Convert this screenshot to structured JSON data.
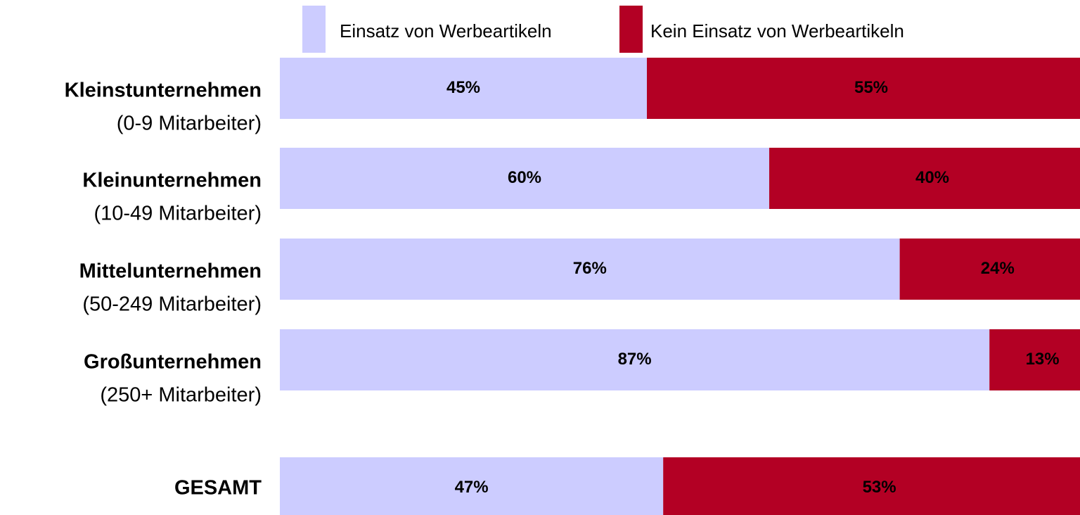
{
  "chart_data": {
    "type": "stacked_bar_horizontal",
    "categories": [
      "Kleinstunternehmen",
      "Kleinunternehmen",
      "Mittelunternehmen",
      "Großunternehmen",
      "GESAMT"
    ],
    "category_sublabels": [
      "(0-9 Mitarbeiter)",
      "(10-49 Mitarbeiter)",
      "(50-249 Mitarbeiter)",
      "(250+ Mitarbeiter)",
      null
    ],
    "xlim": [
      0,
      100
    ],
    "legend": "top",
    "series": [
      {
        "name": "Einsatz von Werbeartikeln",
        "color": "#ccccff",
        "values": [
          45,
          60,
          76,
          87,
          47
        ],
        "value_labels": [
          "45%",
          "60%",
          "76%",
          "87%",
          "47%"
        ]
      },
      {
        "name": "Kein Einsatz von Werbeartikeln",
        "color": "#b30024",
        "values": [
          55,
          40,
          24,
          13,
          53
        ],
        "value_labels": [
          "55%",
          "40%",
          "24%",
          "13%",
          "53%"
        ]
      }
    ]
  }
}
